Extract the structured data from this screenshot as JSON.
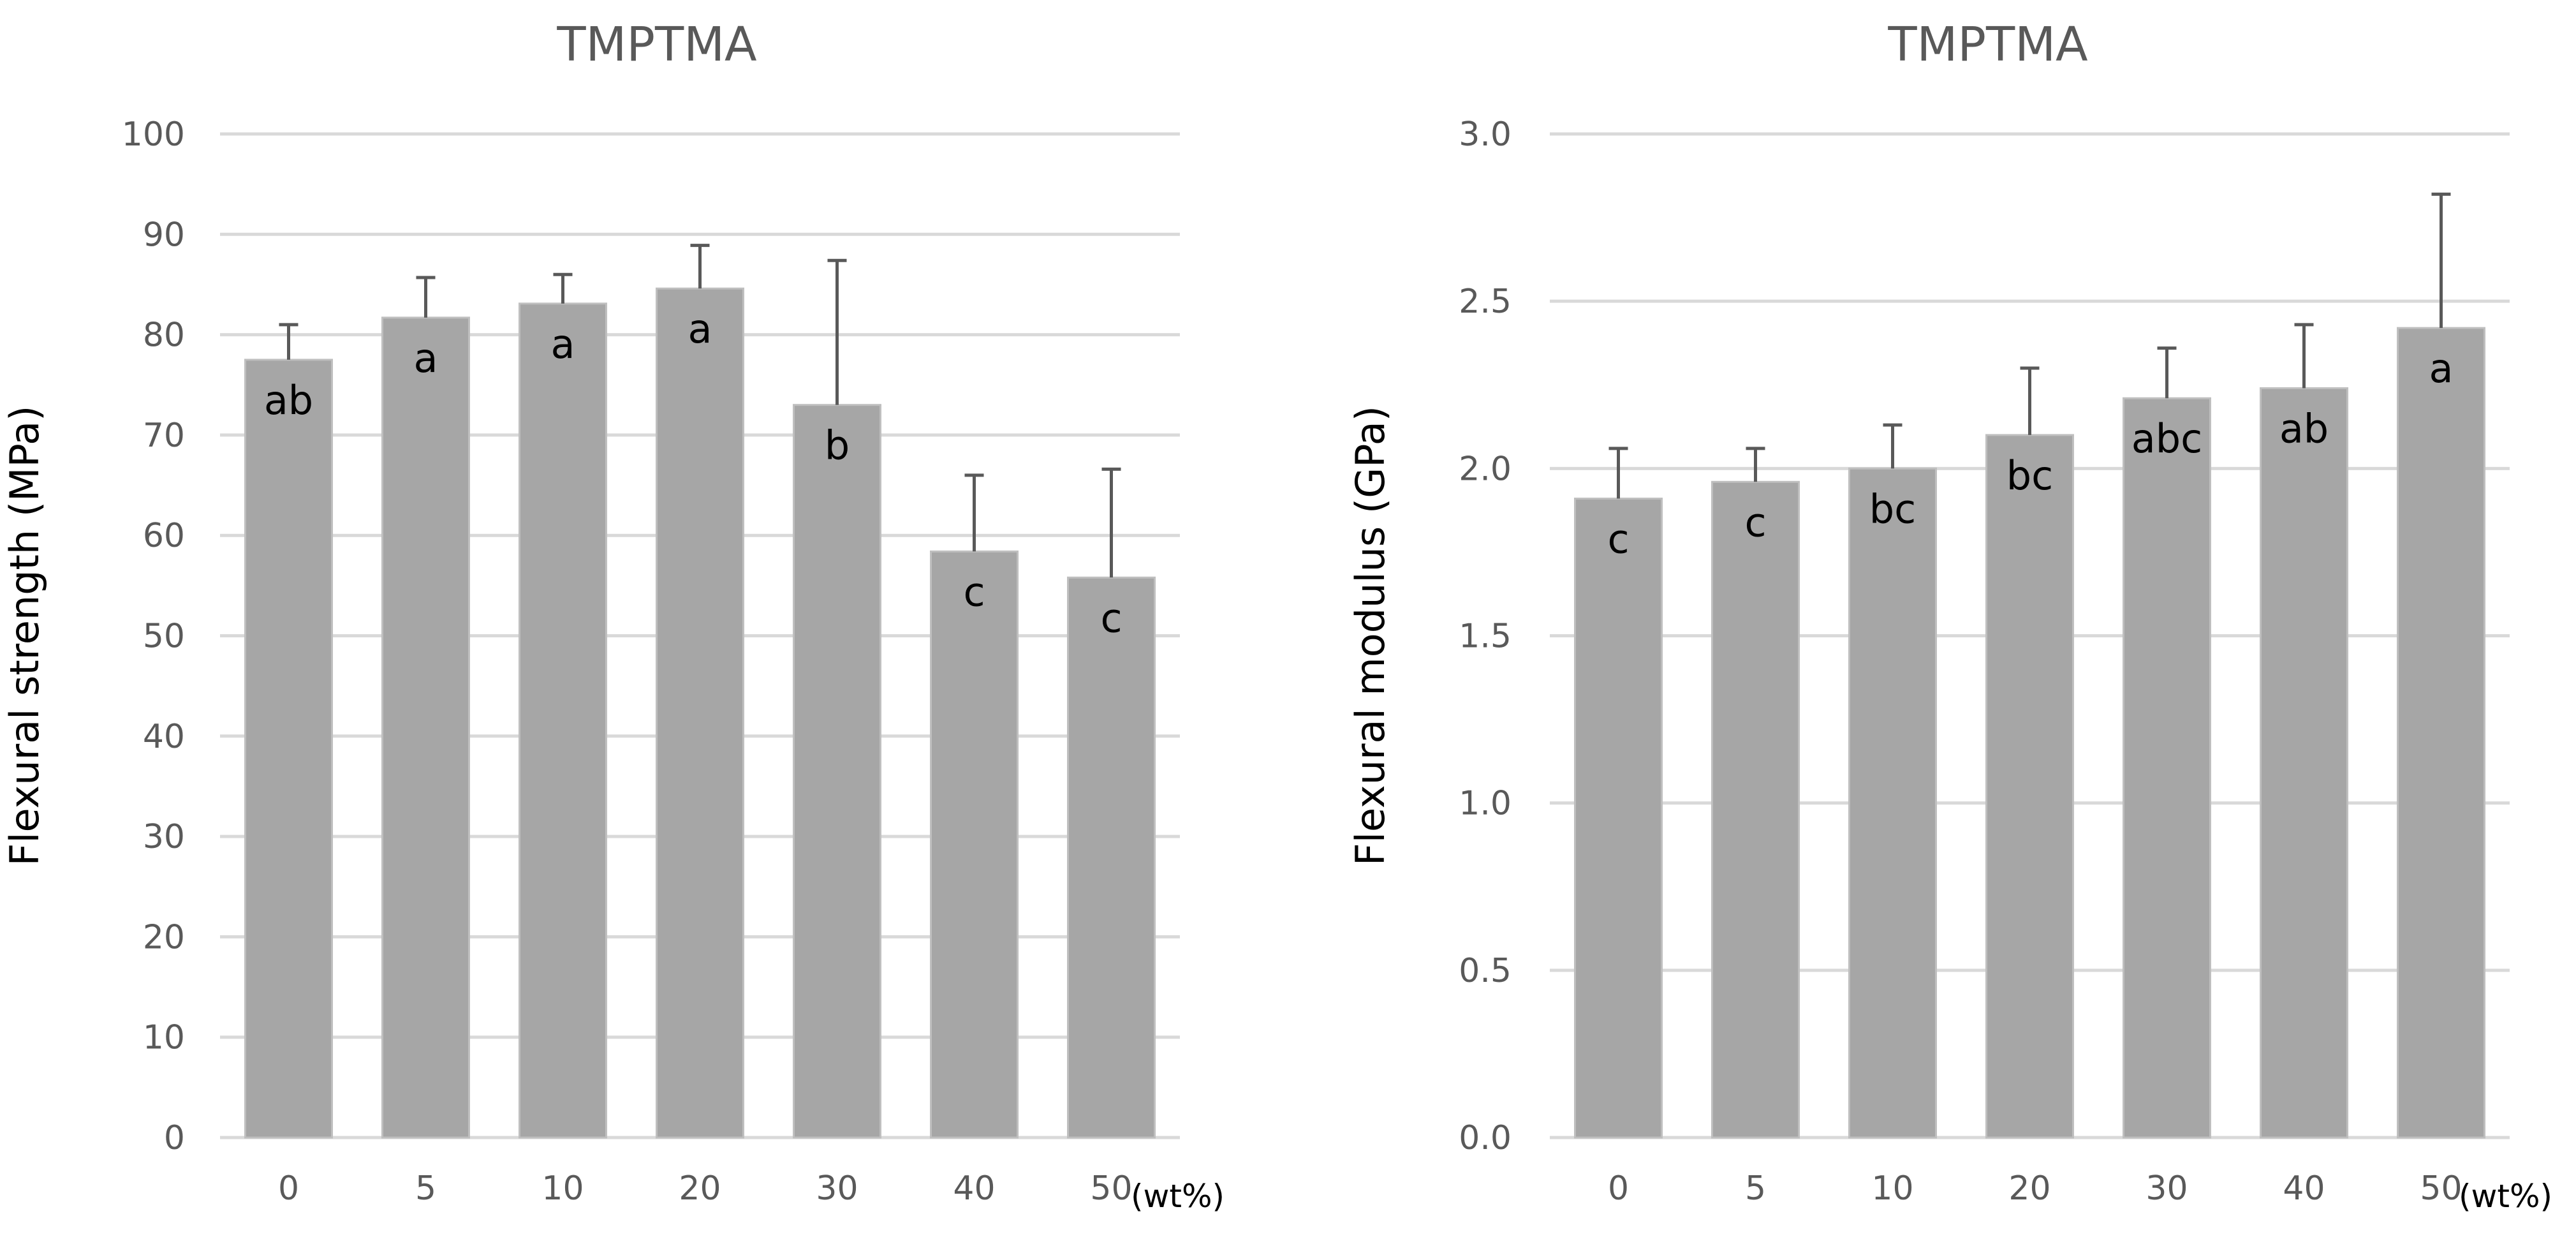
{
  "colors": {
    "bar": "#a6a6a6",
    "grid": "#d9d9d9",
    "error_bar": "#595959",
    "title": "#595959"
  },
  "chart_data": [
    {
      "type": "bar",
      "title": "TMPTMA",
      "xlabel": "",
      "x_unit_label": "(wt%)",
      "ylabel": "Flexural strength (MPa)",
      "categories": [
        "0",
        "5",
        "10",
        "20",
        "30",
        "40",
        "50"
      ],
      "values": [
        77.5,
        81.7,
        83.1,
        84.6,
        73.0,
        58.4,
        55.8
      ],
      "error_plus": [
        3.5,
        4.0,
        2.9,
        4.3,
        14.4,
        7.6,
        10.8
      ],
      "significance_labels": [
        "ab",
        "a",
        "a",
        "a",
        "b",
        "c",
        "c"
      ],
      "ylim": [
        0,
        100
      ],
      "yticks": [
        0,
        10,
        20,
        30,
        40,
        50,
        60,
        70,
        80,
        90,
        100
      ],
      "ytick_labels": [
        "0",
        "10",
        "20",
        "30",
        "40",
        "50",
        "60",
        "70",
        "80",
        "90",
        "100"
      ],
      "grid": true,
      "legend": "none"
    },
    {
      "type": "bar",
      "title": "TMPTMA",
      "xlabel": "",
      "x_unit_label": "(wt%)",
      "ylabel": "Flexural modulus (GPa)",
      "categories": [
        "0",
        "5",
        "10",
        "20",
        "30",
        "40",
        "50"
      ],
      "values": [
        1.91,
        1.96,
        2.0,
        2.1,
        2.21,
        2.24,
        2.42
      ],
      "error_plus": [
        0.15,
        0.1,
        0.13,
        0.2,
        0.15,
        0.19,
        0.4
      ],
      "significance_labels": [
        "c",
        "c",
        "bc",
        "bc",
        "abc",
        "ab",
        "a"
      ],
      "ylim": [
        0,
        3
      ],
      "yticks": [
        0,
        0.5,
        1.0,
        1.5,
        2.0,
        2.5,
        3.0
      ],
      "ytick_labels": [
        "0.0",
        "0.5",
        "1.0",
        "1.5",
        "2.0",
        "2.5",
        "3.0"
      ],
      "grid": true,
      "legend": "none"
    }
  ]
}
